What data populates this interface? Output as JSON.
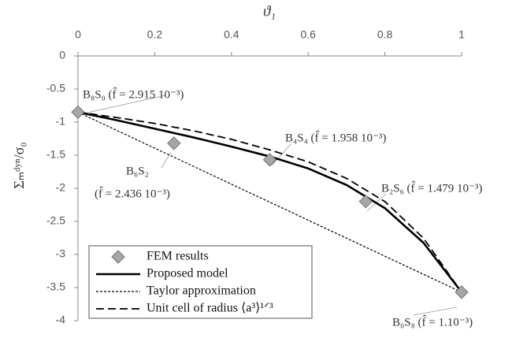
{
  "chart_data": {
    "type": "line",
    "x_label": "ϑ₁",
    "y_label": "Σₘᵈʸⁿ/σ₀",
    "xlim": [
      0,
      1
    ],
    "xticks": [
      0,
      0.2,
      0.4,
      0.6,
      0.8,
      1
    ],
    "ylim": [
      -4,
      0
    ],
    "yticks": [
      0,
      -0.5,
      -1,
      -1.5,
      -2,
      -2.5,
      -3,
      -3.5,
      -4
    ],
    "legend": "lower left",
    "series": [
      {
        "name": "FEM results",
        "style": "diamond",
        "color": "#a6a6a6",
        "x": [
          0,
          0.25,
          0.5,
          0.75,
          1
        ],
        "values": [
          -0.85,
          -1.32,
          -1.57,
          -2.2,
          -3.57
        ]
      },
      {
        "name": "Proposed model",
        "style": "solid",
        "color": "#000000",
        "x": [
          0,
          0.1,
          0.2,
          0.3,
          0.4,
          0.5,
          0.6,
          0.7,
          0.8,
          0.9,
          1
        ],
        "values": [
          -0.85,
          -0.97,
          -1.1,
          -1.23,
          -1.37,
          -1.52,
          -1.7,
          -1.95,
          -2.3,
          -2.82,
          -3.57
        ]
      },
      {
        "name": "Taylor approximation",
        "style": "dotted",
        "color": "#000000",
        "x": [
          0,
          1
        ],
        "values": [
          -0.85,
          -3.57
        ]
      },
      {
        "name": "Unit cell of radius ⟨a³⟩¹ᐟ³",
        "style": "dashed",
        "color": "#000000",
        "x": [
          0,
          0.1,
          0.2,
          0.3,
          0.4,
          0.5,
          0.6,
          0.7,
          0.8,
          0.9,
          1
        ],
        "values": [
          -0.85,
          -0.93,
          -1.02,
          -1.13,
          -1.26,
          -1.42,
          -1.6,
          -1.85,
          -2.2,
          -2.75,
          -3.57
        ]
      }
    ],
    "annotations": [
      "B₈S₀ (f̂ = 2.915 10⁻³)",
      "B₆S₂",
      "(f̂ = 2.436 10⁻³)",
      "B₄S₄ (f̂ = 1.958 10⁻³)",
      "B₂S₆ (f̂ = 1.479 10⁻³)",
      "B₀S₈ (f̂ = 1.10⁻³)"
    ]
  }
}
